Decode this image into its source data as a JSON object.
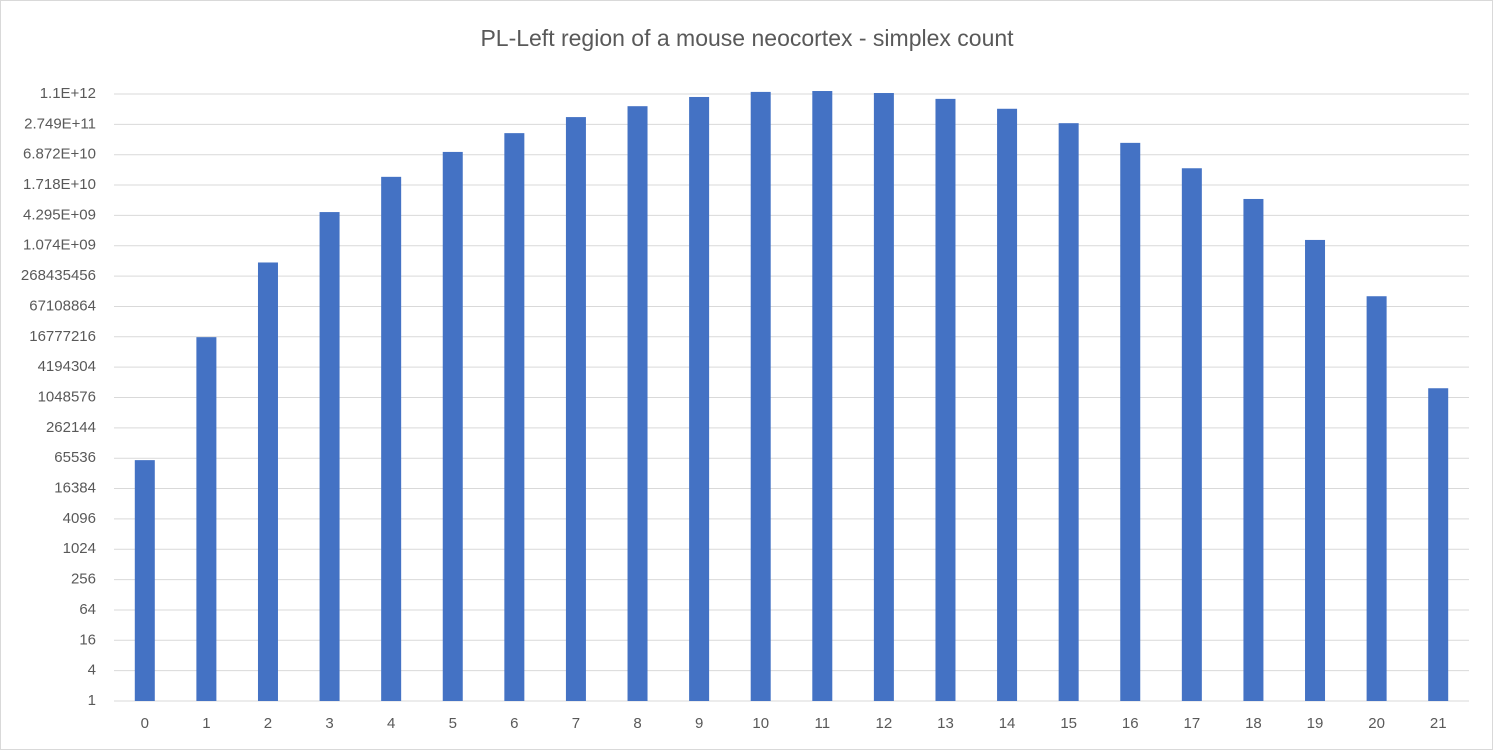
{
  "chart_data": {
    "type": "bar",
    "title": "PL-Left region of a mouse neocortex - simplex count",
    "categories": [
      "0",
      "1",
      "2",
      "3",
      "4",
      "5",
      "6",
      "7",
      "8",
      "9",
      "10",
      "11",
      "12",
      "13",
      "14",
      "15",
      "16",
      "17",
      "18",
      "19",
      "20",
      "21"
    ],
    "values": [
      60000,
      16500000,
      500000000,
      5000000000,
      25000000000,
      78000000000,
      184000000000,
      383000000000,
      630000000000,
      960000000000,
      1210000000000,
      1260000000000,
      1150000000000,
      880000000000,
      560000000000,
      290000000000,
      118000000000,
      37000000000,
      9100000000,
      1400000000,
      107000000,
      1600000
    ],
    "color": "#4472c4",
    "yscale": "log",
    "ylim": [
      1,
      1099511627776
    ],
    "yticks": [
      1,
      4,
      16,
      64,
      256,
      1024,
      4096,
      16384,
      65536,
      262144,
      1048576,
      4194304,
      16777216,
      67108864,
      268435456,
      {
        "value": 1073741824,
        "label": "1.074E+09"
      },
      {
        "value": 4294967296,
        "label": "4.295E+09"
      },
      {
        "value": 17179869184,
        "label": "1.718E+10"
      },
      {
        "value": 68719476736,
        "label": "6.872E+10"
      },
      {
        "value": 274877906944,
        "label": "2.749E+11"
      },
      {
        "value": 1099511627776,
        "label": "1.1E+12"
      }
    ],
    "grid": true
  }
}
